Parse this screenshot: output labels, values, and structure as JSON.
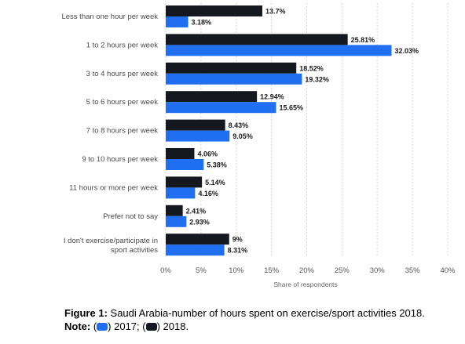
{
  "chart_data": {
    "type": "bar",
    "orientation": "horizontal",
    "categories": [
      "Less than one hour per week",
      "1 to 2 hours per week",
      "3 to 4 hours per week",
      "5 to 6 hours per week",
      "7 to 8 hours per week",
      "9 to 10 hours per week",
      "11 hours or more per week",
      "Prefer not to say",
      "I don't exercise/participate in sport activities"
    ],
    "series": [
      {
        "name": "2018",
        "color": "#15181f",
        "values": [
          13.7,
          25.81,
          18.52,
          12.94,
          8.43,
          4.06,
          5.14,
          2.41,
          9
        ],
        "labels": [
          "13.7%",
          "25.81%",
          "18.52%",
          "12.94%",
          "8.43%",
          "4.06%",
          "5.14%",
          "2.41%",
          "9%"
        ]
      },
      {
        "name": "2017",
        "color": "#1f6ff0",
        "values": [
          3.18,
          32.03,
          19.32,
          15.65,
          9.05,
          5.38,
          4.16,
          2.93,
          8.31
        ],
        "labels": [
          "3.18%",
          "32.03%",
          "19.32%",
          "15.65%",
          "9.05%",
          "5.38%",
          "4.16%",
          "2.93%",
          "8.31%"
        ]
      }
    ],
    "xlim": [
      0,
      40
    ],
    "xticks": [
      "0%",
      "5%",
      "10%",
      "15%",
      "20%",
      "25%",
      "30%",
      "35%",
      "40%"
    ],
    "xlabel": "Share of respondents",
    "grid": true,
    "legend": "caption"
  },
  "caption": {
    "figure_label": "Figure 1:",
    "figure_text": " Saudi Arabia-number of hours spent on exercise/sport activities 2018.",
    "note_label": "Note:",
    "note_open": " (",
    "note_mid": ") 2017; (",
    "note_end": ") 2018.",
    "color_2017": "#1f6ff0",
    "color_2018": "#15181f"
  }
}
